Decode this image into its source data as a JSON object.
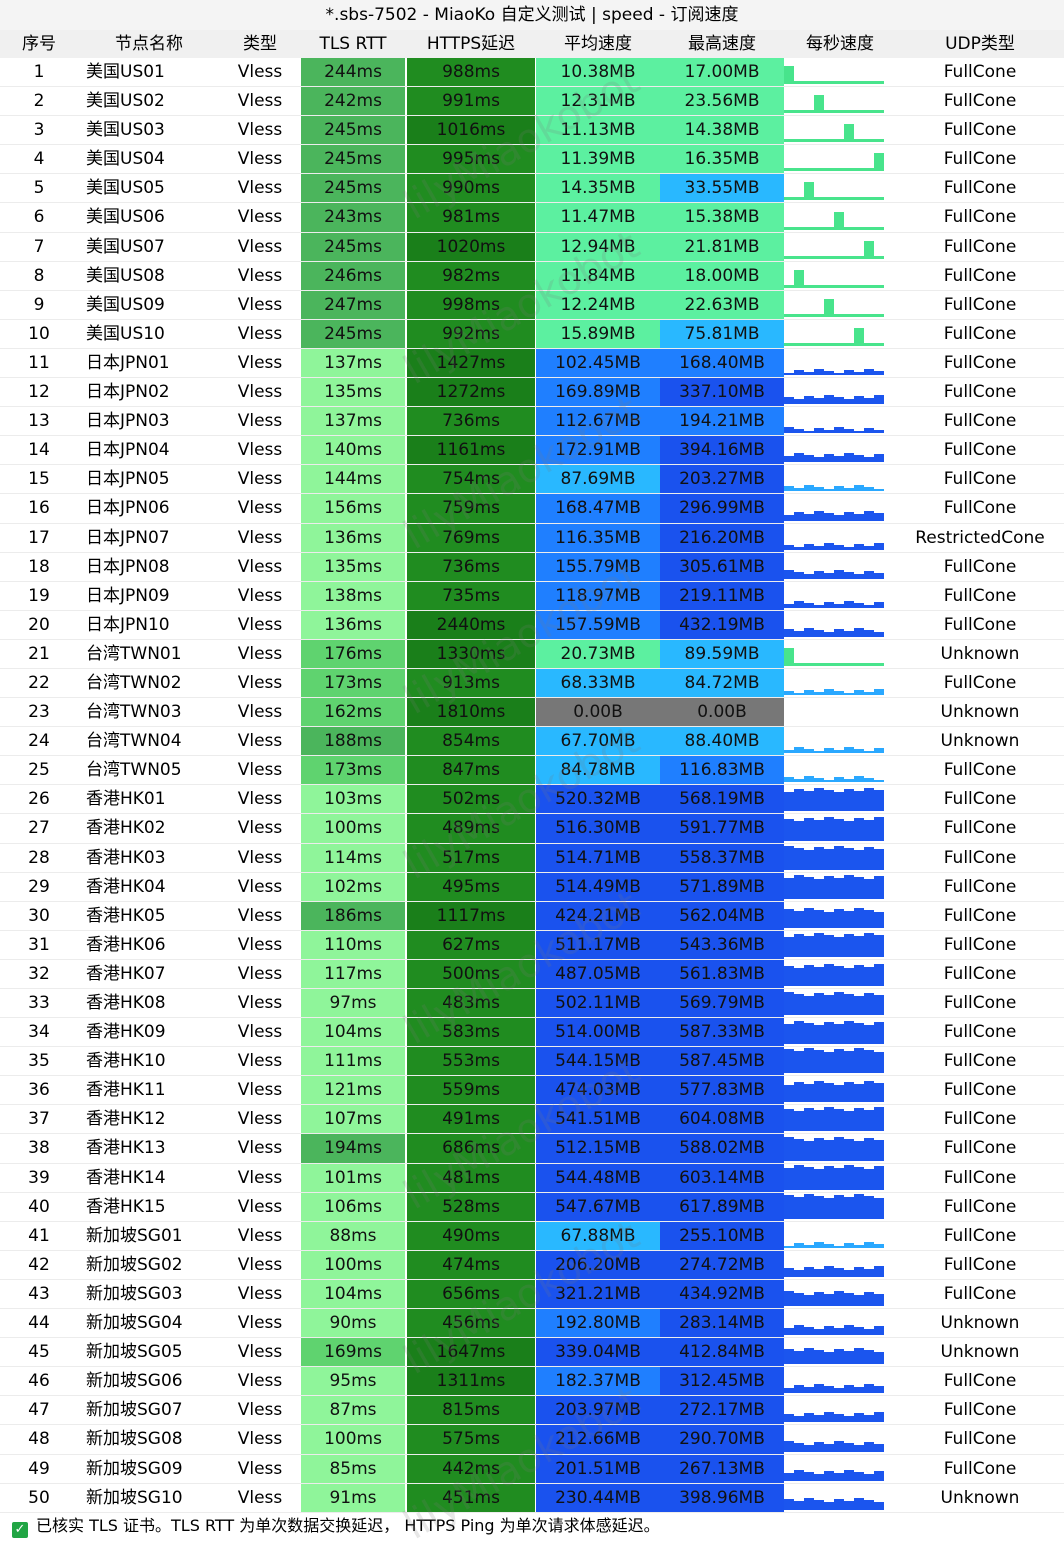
{
  "window": {
    "title": "*.sbs-7502 - MiaoKo 自定义测试 | speed - 订阅速度"
  },
  "headers": [
    "序号",
    "节点名称",
    "类型",
    "TLS RTT",
    "HTTPS延迟",
    "平均速度",
    "最高速度",
    "每秒速度",
    "UDP类型"
  ],
  "rows": [
    {
      "idx": "1",
      "name": "美国US01",
      "type": "Vless",
      "rtt": "244ms",
      "https": "988ms",
      "avg": "10.38MB",
      "max": "17.00MB",
      "udp": "FullCone"
    },
    {
      "idx": "2",
      "name": "美国US02",
      "type": "Vless",
      "rtt": "242ms",
      "https": "991ms",
      "avg": "12.31MB",
      "max": "23.56MB",
      "udp": "FullCone"
    },
    {
      "idx": "3",
      "name": "美国US03",
      "type": "Vless",
      "rtt": "245ms",
      "https": "1016ms",
      "avg": "11.13MB",
      "max": "14.38MB",
      "udp": "FullCone"
    },
    {
      "idx": "4",
      "name": "美国US04",
      "type": "Vless",
      "rtt": "245ms",
      "https": "995ms",
      "avg": "11.39MB",
      "max": "16.35MB",
      "udp": "FullCone"
    },
    {
      "idx": "5",
      "name": "美国US05",
      "type": "Vless",
      "rtt": "245ms",
      "https": "990ms",
      "avg": "14.35MB",
      "max": "33.55MB",
      "udp": "FullCone"
    },
    {
      "idx": "6",
      "name": "美国US06",
      "type": "Vless",
      "rtt": "243ms",
      "https": "981ms",
      "avg": "11.47MB",
      "max": "15.38MB",
      "udp": "FullCone"
    },
    {
      "idx": "7",
      "name": "美国US07",
      "type": "Vless",
      "rtt": "245ms",
      "https": "1020ms",
      "avg": "12.94MB",
      "max": "21.81MB",
      "udp": "FullCone"
    },
    {
      "idx": "8",
      "name": "美国US08",
      "type": "Vless",
      "rtt": "246ms",
      "https": "982ms",
      "avg": "11.84MB",
      "max": "18.00MB",
      "udp": "FullCone"
    },
    {
      "idx": "9",
      "name": "美国US09",
      "type": "Vless",
      "rtt": "247ms",
      "https": "998ms",
      "avg": "12.24MB",
      "max": "22.63MB",
      "udp": "FullCone"
    },
    {
      "idx": "10",
      "name": "美国US10",
      "type": "Vless",
      "rtt": "245ms",
      "https": "992ms",
      "avg": "15.89MB",
      "max": "75.81MB",
      "udp": "FullCone"
    },
    {
      "idx": "11",
      "name": "日本JPN01",
      "type": "Vless",
      "rtt": "137ms",
      "https": "1427ms",
      "avg": "102.45MB",
      "max": "168.40MB",
      "udp": "FullCone"
    },
    {
      "idx": "12",
      "name": "日本JPN02",
      "type": "Vless",
      "rtt": "135ms",
      "https": "1272ms",
      "avg": "169.89MB",
      "max": "337.10MB",
      "udp": "FullCone"
    },
    {
      "idx": "13",
      "name": "日本JPN03",
      "type": "Vless",
      "rtt": "137ms",
      "https": "736ms",
      "avg": "112.67MB",
      "max": "194.21MB",
      "udp": "FullCone"
    },
    {
      "idx": "14",
      "name": "日本JPN04",
      "type": "Vless",
      "rtt": "140ms",
      "https": "1161ms",
      "avg": "172.91MB",
      "max": "394.16MB",
      "udp": "FullCone"
    },
    {
      "idx": "15",
      "name": "日本JPN05",
      "type": "Vless",
      "rtt": "144ms",
      "https": "754ms",
      "avg": "87.69MB",
      "max": "203.27MB",
      "udp": "FullCone"
    },
    {
      "idx": "16",
      "name": "日本JPN06",
      "type": "Vless",
      "rtt": "156ms",
      "https": "759ms",
      "avg": "168.47MB",
      "max": "296.99MB",
      "udp": "FullCone"
    },
    {
      "idx": "17",
      "name": "日本JPN07",
      "type": "Vless",
      "rtt": "136ms",
      "https": "769ms",
      "avg": "116.35MB",
      "max": "216.20MB",
      "udp": "RestrictedCone"
    },
    {
      "idx": "18",
      "name": "日本JPN08",
      "type": "Vless",
      "rtt": "135ms",
      "https": "736ms",
      "avg": "155.79MB",
      "max": "305.61MB",
      "udp": "FullCone"
    },
    {
      "idx": "19",
      "name": "日本JPN09",
      "type": "Vless",
      "rtt": "138ms",
      "https": "735ms",
      "avg": "118.97MB",
      "max": "219.11MB",
      "udp": "FullCone"
    },
    {
      "idx": "20",
      "name": "日本JPN10",
      "type": "Vless",
      "rtt": "136ms",
      "https": "2440ms",
      "avg": "157.59MB",
      "max": "432.19MB",
      "udp": "FullCone"
    },
    {
      "idx": "21",
      "name": "台湾TWN01",
      "type": "Vless",
      "rtt": "176ms",
      "https": "1330ms",
      "avg": "20.73MB",
      "max": "89.59MB",
      "udp": "Unknown"
    },
    {
      "idx": "22",
      "name": "台湾TWN02",
      "type": "Vless",
      "rtt": "173ms",
      "https": "913ms",
      "avg": "68.33MB",
      "max": "84.72MB",
      "udp": "FullCone"
    },
    {
      "idx": "23",
      "name": "台湾TWN03",
      "type": "Vless",
      "rtt": "162ms",
      "https": "1810ms",
      "avg": "0.00B",
      "max": "0.00B",
      "udp": "Unknown"
    },
    {
      "idx": "24",
      "name": "台湾TWN04",
      "type": "Vless",
      "rtt": "188ms",
      "https": "854ms",
      "avg": "67.70MB",
      "max": "88.40MB",
      "udp": "Unknown"
    },
    {
      "idx": "25",
      "name": "台湾TWN05",
      "type": "Vless",
      "rtt": "173ms",
      "https": "847ms",
      "avg": "84.78MB",
      "max": "116.83MB",
      "udp": "FullCone"
    },
    {
      "idx": "26",
      "name": "香港HK01",
      "type": "Vless",
      "rtt": "103ms",
      "https": "502ms",
      "avg": "520.32MB",
      "max": "568.19MB",
      "udp": "FullCone"
    },
    {
      "idx": "27",
      "name": "香港HK02",
      "type": "Vless",
      "rtt": "100ms",
      "https": "489ms",
      "avg": "516.30MB",
      "max": "591.77MB",
      "udp": "FullCone"
    },
    {
      "idx": "28",
      "name": "香港HK03",
      "type": "Vless",
      "rtt": "114ms",
      "https": "517ms",
      "avg": "514.71MB",
      "max": "558.37MB",
      "udp": "FullCone"
    },
    {
      "idx": "29",
      "name": "香港HK04",
      "type": "Vless",
      "rtt": "102ms",
      "https": "495ms",
      "avg": "514.49MB",
      "max": "571.89MB",
      "udp": "FullCone"
    },
    {
      "idx": "30",
      "name": "香港HK05",
      "type": "Vless",
      "rtt": "186ms",
      "https": "1117ms",
      "avg": "424.21MB",
      "max": "562.04MB",
      "udp": "FullCone"
    },
    {
      "idx": "31",
      "name": "香港HK06",
      "type": "Vless",
      "rtt": "110ms",
      "https": "627ms",
      "avg": "511.17MB",
      "max": "543.36MB",
      "udp": "FullCone"
    },
    {
      "idx": "32",
      "name": "香港HK07",
      "type": "Vless",
      "rtt": "117ms",
      "https": "500ms",
      "avg": "487.05MB",
      "max": "561.83MB",
      "udp": "FullCone"
    },
    {
      "idx": "33",
      "name": "香港HK08",
      "type": "Vless",
      "rtt": "97ms",
      "https": "483ms",
      "avg": "502.11MB",
      "max": "569.79MB",
      "udp": "FullCone"
    },
    {
      "idx": "34",
      "name": "香港HK09",
      "type": "Vless",
      "rtt": "104ms",
      "https": "583ms",
      "avg": "514.00MB",
      "max": "587.33MB",
      "udp": "FullCone"
    },
    {
      "idx": "35",
      "name": "香港HK10",
      "type": "Vless",
      "rtt": "111ms",
      "https": "553ms",
      "avg": "544.15MB",
      "max": "587.45MB",
      "udp": "FullCone"
    },
    {
      "idx": "36",
      "name": "香港HK11",
      "type": "Vless",
      "rtt": "121ms",
      "https": "559ms",
      "avg": "474.03MB",
      "max": "577.83MB",
      "udp": "FullCone"
    },
    {
      "idx": "37",
      "name": "香港HK12",
      "type": "Vless",
      "rtt": "107ms",
      "https": "491ms",
      "avg": "541.51MB",
      "max": "604.08MB",
      "udp": "FullCone"
    },
    {
      "idx": "38",
      "name": "香港HK13",
      "type": "Vless",
      "rtt": "194ms",
      "https": "686ms",
      "avg": "512.15MB",
      "max": "588.02MB",
      "udp": "FullCone"
    },
    {
      "idx": "39",
      "name": "香港HK14",
      "type": "Vless",
      "rtt": "101ms",
      "https": "481ms",
      "avg": "544.48MB",
      "max": "603.14MB",
      "udp": "FullCone"
    },
    {
      "idx": "40",
      "name": "香港HK15",
      "type": "Vless",
      "rtt": "106ms",
      "https": "528ms",
      "avg": "547.67MB",
      "max": "617.89MB",
      "udp": "FullCone"
    },
    {
      "idx": "41",
      "name": "新加坡SG01",
      "type": "Vless",
      "rtt": "88ms",
      "https": "490ms",
      "avg": "67.88MB",
      "max": "255.10MB",
      "udp": "FullCone"
    },
    {
      "idx": "42",
      "name": "新加坡SG02",
      "type": "Vless",
      "rtt": "100ms",
      "https": "474ms",
      "avg": "206.20MB",
      "max": "274.72MB",
      "udp": "FullCone"
    },
    {
      "idx": "43",
      "name": "新加坡SG03",
      "type": "Vless",
      "rtt": "104ms",
      "https": "656ms",
      "avg": "321.21MB",
      "max": "434.92MB",
      "udp": "FullCone"
    },
    {
      "idx": "44",
      "name": "新加坡SG04",
      "type": "Vless",
      "rtt": "90ms",
      "https": "456ms",
      "avg": "192.80MB",
      "max": "283.14MB",
      "udp": "Unknown"
    },
    {
      "idx": "45",
      "name": "新加坡SG05",
      "type": "Vless",
      "rtt": "169ms",
      "https": "1647ms",
      "avg": "339.04MB",
      "max": "412.84MB",
      "udp": "Unknown"
    },
    {
      "idx": "46",
      "name": "新加坡SG06",
      "type": "Vless",
      "rtt": "95ms",
      "https": "1311ms",
      "avg": "182.37MB",
      "max": "312.45MB",
      "udp": "FullCone"
    },
    {
      "idx": "47",
      "name": "新加坡SG07",
      "type": "Vless",
      "rtt": "87ms",
      "https": "815ms",
      "avg": "203.97MB",
      "max": "272.17MB",
      "udp": "FullCone"
    },
    {
      "idx": "48",
      "name": "新加坡SG08",
      "type": "Vless",
      "rtt": "100ms",
      "https": "575ms",
      "avg": "212.66MB",
      "max": "290.70MB",
      "udp": "FullCone"
    },
    {
      "idx": "49",
      "name": "新加坡SG09",
      "type": "Vless",
      "rtt": "85ms",
      "https": "442ms",
      "avg": "201.51MB",
      "max": "267.13MB",
      "udp": "FullCone"
    },
    {
      "idx": "50",
      "name": "新加坡SG10",
      "type": "Vless",
      "rtt": "91ms",
      "https": "451ms",
      "avg": "230.44MB",
      "max": "398.96MB",
      "udp": "Unknown"
    }
  ],
  "footer": {
    "text": "已核实 TLS 证书。TLS RTT 为单次数据交换延迟， HTTPS Ping 为单次请求体感延迟。"
  },
  "watermark": "lilyMiaokobot",
  "colors": {
    "rtt_light": "#8ff59a",
    "rtt_mid": "#5fd36f",
    "rtt_dark": "#4bb55c",
    "https_dark": "#1e8a1e",
    "https_mid": "#2e9e2e",
    "avg_green": "#5cf0a0",
    "avg_blue": "#1f7fff",
    "avg_deep": "#1a52ee",
    "gray": "#777777"
  }
}
